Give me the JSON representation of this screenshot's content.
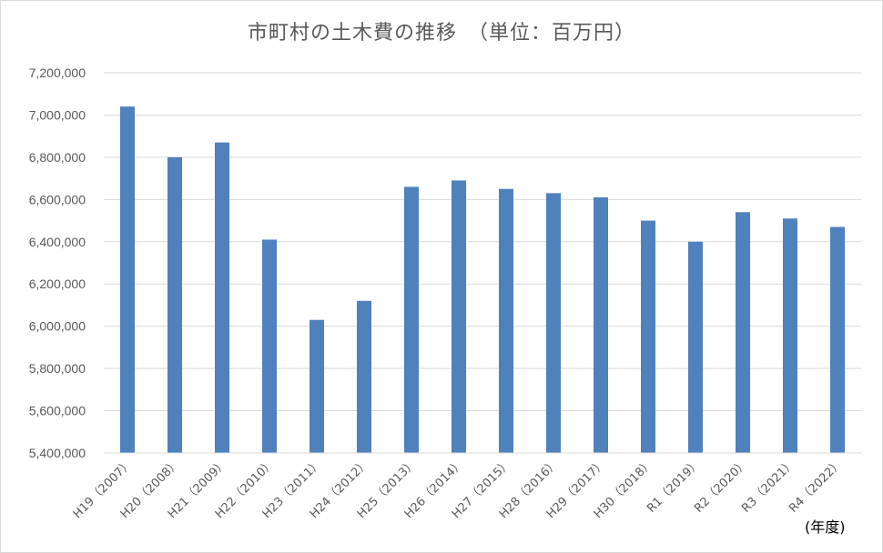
{
  "chart_data": {
    "type": "bar",
    "title": "市町村の土木費の推移　（単位：百万円）",
    "xlabel": "(年度)",
    "ylabel": "",
    "ylim": [
      5400000,
      7200000
    ],
    "ytick_step": 200000,
    "grid": true,
    "bar_color": "#4f81bd",
    "categories": [
      "H19（2007）",
      "H20（2008）",
      "H21（2009）",
      "H22（2010）",
      "H23（2011）",
      "H24（2012）",
      "H25（2013）",
      "H26（2014）",
      "H27（2015）",
      "H28（2016）",
      "H29（2017）",
      "H30（2018）",
      "R1（2019）",
      "R2（2020）",
      "R3（2021）",
      "R4（2022）"
    ],
    "values": [
      7040000,
      6800000,
      6870000,
      6410000,
      6030000,
      6120000,
      6660000,
      6690000,
      6650000,
      6630000,
      6610000,
      6500000,
      6400000,
      6540000,
      6510000,
      6470000
    ],
    "ytick_labels": [
      "5,400,000",
      "5,600,000",
      "5,800,000",
      "6,000,000",
      "6,200,000",
      "6,400,000",
      "6,600,000",
      "6,800,000",
      "7,000,000",
      "7,200,000"
    ]
  }
}
